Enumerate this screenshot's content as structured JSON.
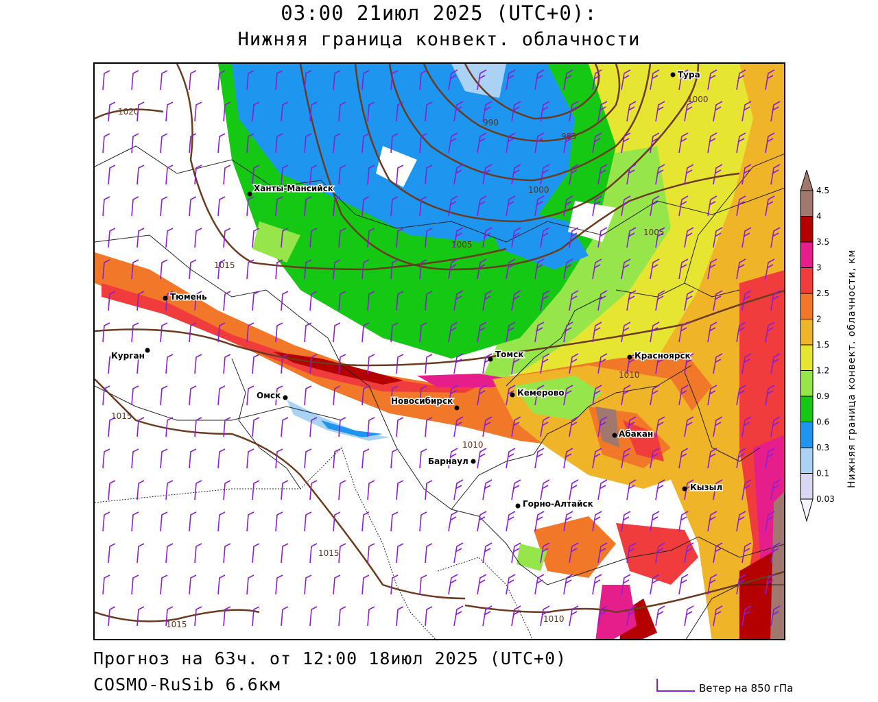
{
  "title": {
    "time": "03:00 21июл 2025 (UTC+0):",
    "parameter": "Нижняя граница конвект. облачности"
  },
  "footer": {
    "forecast": "Прогноз на 63ч. от 12:00 18июл 2025 (UTC+0)",
    "model": "COSMO-RuSib 6.6км",
    "wind_legend": "Ветер на 850 гПа"
  },
  "legend": {
    "title": "Нижняя граница конвект. облачности, км",
    "levels": [
      {
        "label": "0.03",
        "color": "#f4f4ff"
      },
      {
        "label": "0.1",
        "color": "#d8d8f4"
      },
      {
        "label": "0.3",
        "color": "#a9d2f5"
      },
      {
        "label": "0.6",
        "color": "#1e96f0"
      },
      {
        "label": "0.9",
        "color": "#14c814"
      },
      {
        "label": "1.2",
        "color": "#96e64b"
      },
      {
        "label": "1.5",
        "color": "#e6e632"
      },
      {
        "label": "2",
        "color": "#f0b428"
      },
      {
        "label": "2.5",
        "color": "#f07828"
      },
      {
        "label": "3",
        "color": "#f03c3c"
      },
      {
        "label": "3.5",
        "color": "#e61e8c"
      },
      {
        "label": "4",
        "color": "#b40000"
      },
      {
        "label": "4.5",
        "color": "#a0786e"
      }
    ]
  },
  "colors": {
    "isobar": "#6b3a1f",
    "wind_barb": "#8a1ed2",
    "boundary": "#222222"
  },
  "map": {
    "cities": [
      {
        "name": "Тура"
      },
      {
        "name": "Ханты-Мансийск"
      },
      {
        "name": "Тюмень"
      },
      {
        "name": "Курган"
      },
      {
        "name": "Омск"
      },
      {
        "name": "Новосибирск"
      },
      {
        "name": "Томск"
      },
      {
        "name": "Кемерово"
      },
      {
        "name": "Красноярск"
      },
      {
        "name": "Абакан"
      },
      {
        "name": "Барнаул"
      },
      {
        "name": "Горно-Алтайск"
      },
      {
        "name": "Кызыл"
      }
    ],
    "isobar_labels": [
      "1020",
      "1015",
      "1015",
      "1015",
      "1015",
      "1010",
      "1010",
      "1010",
      "1005",
      "1005",
      "1000",
      "1000",
      "995",
      "990"
    ]
  }
}
